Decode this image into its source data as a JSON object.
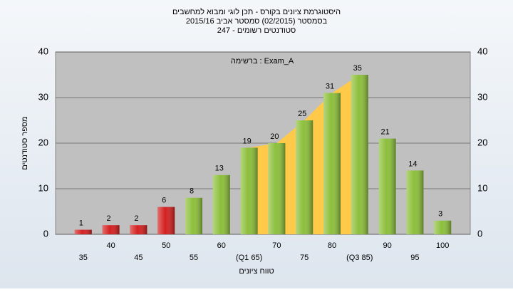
{
  "chart_data": {
    "type": "bar",
    "title": [
      "היסטוגרמת ציונים בקורס - תכן לוגי ומבוא למחשבים",
      "בסמסטר  (02/2015)  סמסטר אביב 2015/16",
      "סטודנטים רשומים - 247"
    ],
    "annotation": "ברשימה : Exam_A",
    "y_label": "מספר סטודנטים",
    "x_label": "טווח ציונים",
    "x": [
      35,
      40,
      45,
      50,
      55,
      60,
      65,
      70,
      75,
      80,
      85,
      90,
      95,
      100
    ],
    "xticks": [
      35,
      40,
      45,
      50,
      55,
      60,
      {
        "value": 65,
        "label": "(Q1 65)"
      },
      70,
      75,
      80,
      {
        "value": 85,
        "label": "(Q3 85)"
      },
      90,
      95,
      100
    ],
    "values": [
      1,
      2,
      2,
      6,
      8,
      13,
      19,
      20,
      25,
      31,
      35,
      21,
      14,
      3
    ],
    "colors": [
      "#d42020",
      "#d42020",
      "#d42020",
      "#d42020",
      "#8cbf3a",
      "#8cbf3a",
      "#8cbf3a",
      "#8cbf3a",
      "#8cbf3a",
      "#8cbf3a",
      "#8cbf3a",
      "#8cbf3a",
      "#8cbf3a",
      "#8cbf3a"
    ],
    "quartiles": [
      65,
      85
    ],
    "quartile_color": "#ffc94a",
    "xlim": [
      30,
      105
    ],
    "ylim": [
      0,
      40
    ],
    "yticks": [
      0,
      10,
      20,
      30,
      40
    ]
  }
}
